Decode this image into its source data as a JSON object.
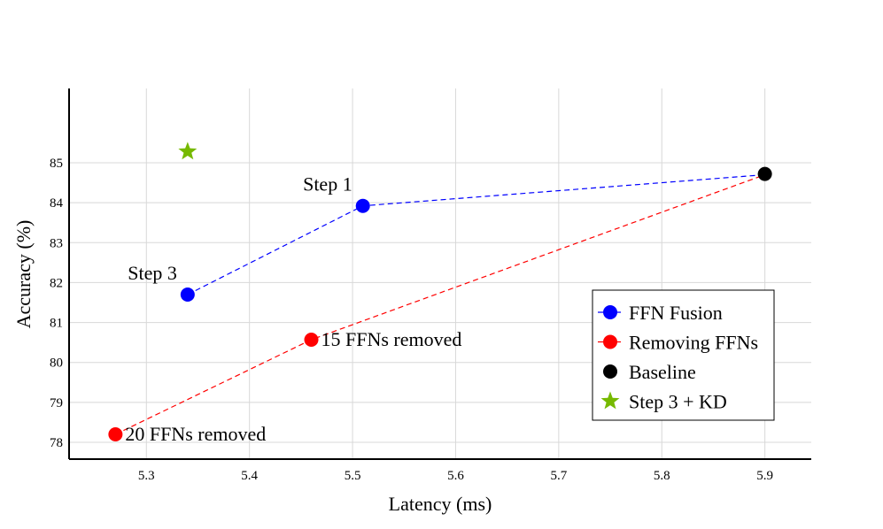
{
  "chart_data": {
    "type": "scatter",
    "xlabel": "Latency (ms)",
    "ylabel": "Accuracy (%)",
    "xlim": [
      5.225,
      5.945
    ],
    "ylim": [
      77.58,
      86.86
    ],
    "xticks": [
      5.3,
      5.4,
      5.5,
      5.6,
      5.7,
      5.8,
      5.9
    ],
    "yticks": [
      78,
      79,
      80,
      81,
      82,
      83,
      84,
      85
    ],
    "grid": true,
    "legend_position": "lower-right",
    "series": [
      {
        "name": "FFN Fusion",
        "color": "#0000ff",
        "marker": "circle",
        "line": "dashed",
        "points": [
          {
            "x": 5.34,
            "y": 81.7,
            "label": "Step 3"
          },
          {
            "x": 5.51,
            "y": 83.92,
            "label": "Step 1"
          },
          {
            "x": 5.9,
            "y": 84.7,
            "label": ""
          }
        ]
      },
      {
        "name": "Removing FFNs",
        "color": "#ff0000",
        "marker": "circle",
        "line": "dashed",
        "points": [
          {
            "x": 5.27,
            "y": 78.2,
            "label": "20 FFNs removed"
          },
          {
            "x": 5.46,
            "y": 80.57,
            "label": "15 FFNs removed"
          },
          {
            "x": 5.9,
            "y": 84.7,
            "label": ""
          }
        ]
      },
      {
        "name": "Baseline",
        "color": "#000000",
        "marker": "circle",
        "line": "none",
        "points": [
          {
            "x": 5.9,
            "y": 84.72,
            "label": ""
          }
        ]
      },
      {
        "name": "Step 3 + KD",
        "color": "#76b900",
        "marker": "star",
        "line": "none",
        "points": [
          {
            "x": 5.34,
            "y": 85.28,
            "label": ""
          }
        ]
      }
    ]
  }
}
